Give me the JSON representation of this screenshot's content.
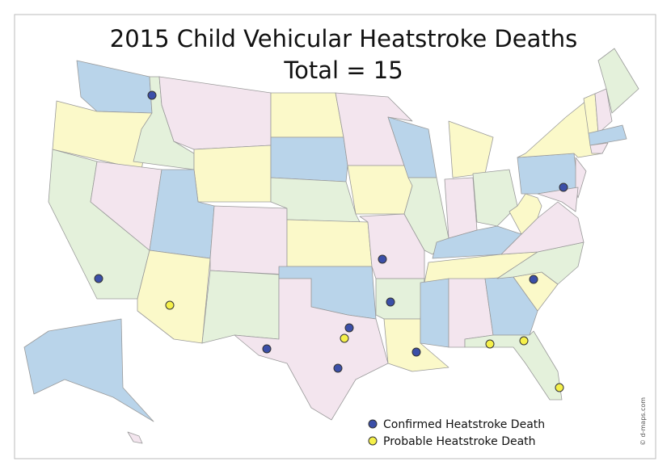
{
  "header": {
    "title": "2015 Child Vehicular Heatstroke Deaths",
    "subtitle": "Total = 15"
  },
  "legend": [
    {
      "label": "Confirmed Heatstroke Death",
      "color": "#3b4fa8"
    },
    {
      "label": "Probable Heatstroke Death",
      "color": "#f5f04a"
    }
  ],
  "credit": "© d-maps.com"
}
